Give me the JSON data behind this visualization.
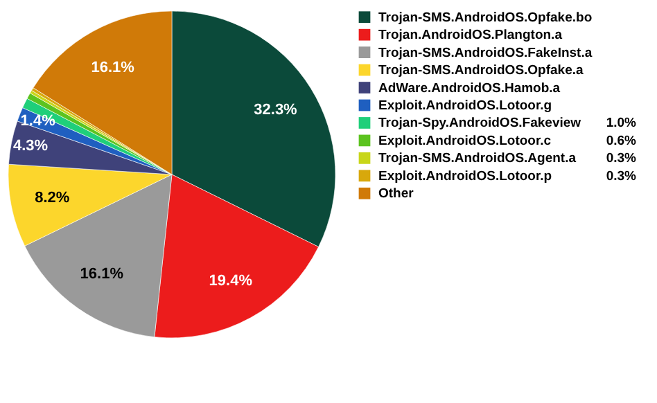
{
  "chart_data": {
    "type": "pie",
    "categories": [
      "Trojan-SMS.AndroidOS.Opfake.bo",
      "Trojan.AndroidOS.Plangton.a",
      "Trojan-SMS.AndroidOS.FakeInst.a",
      "Trojan-SMS.AndroidOS.Opfake.a",
      "AdWare.AndroidOS.Hamob.a",
      "Exploit.AndroidOS.Lotoor.g",
      "Trojan-Spy.AndroidOS.Fakeview",
      "Exploit.AndroidOS.Lotoor.c",
      "Trojan-SMS.AndroidOS.Agent.a",
      "Exploit.AndroidOS.Lotoor.p",
      "Other"
    ],
    "values": [
      32.3,
      19.4,
      16.1,
      8.2,
      4.3,
      1.4,
      1.0,
      0.6,
      0.3,
      0.3,
      16.1
    ],
    "value_labels": [
      "32.3%",
      "19.4%",
      "16.1%",
      "8.2%",
      "4.3%",
      "1.4%",
      "1.0%",
      "0.6%",
      "0.3%",
      "0.3%",
      "16.1%"
    ],
    "colors": [
      "#0b4a3a",
      "#ec1c1c",
      "#9a9a9a",
      "#fcd62c",
      "#3f427a",
      "#1f5fc0",
      "#1fcf7a",
      "#5cc31f",
      "#c8d61a",
      "#d8a80c",
      "#d07a08"
    ],
    "legend": "right"
  }
}
